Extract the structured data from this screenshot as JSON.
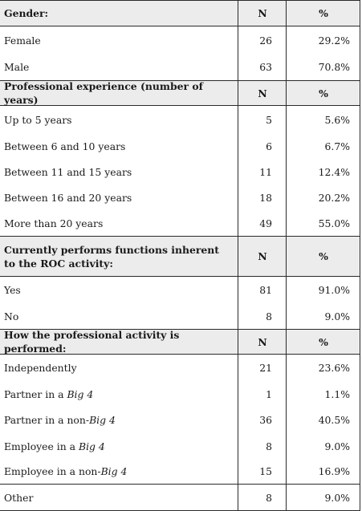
{
  "headers": {
    "n": "N",
    "pct": "%"
  },
  "sections": [
    {
      "title": "Gender:",
      "rows": [
        {
          "label": "Female",
          "n": "26",
          "pct": "29.2%"
        },
        {
          "label": "Male",
          "n": "63",
          "pct": "70.8%"
        }
      ]
    },
    {
      "title": "Professional experience (number of years)",
      "rows": [
        {
          "label": "Up to 5 years",
          "n": "5",
          "pct": "5.6%"
        },
        {
          "label": "Between 6 and 10 years",
          "n": "6",
          "pct": "6.7%"
        },
        {
          "label": "Between 11 and 15 years",
          "n": "11",
          "pct": "12.4%"
        },
        {
          "label": "Between 16 and 20 years",
          "n": "18",
          "pct": "20.2%"
        },
        {
          "label": "More than 20 years",
          "n": "49",
          "pct": "55.0%"
        }
      ]
    },
    {
      "title": "Currently performs functions inherent to the ROC activity:",
      "rows": [
        {
          "label": "Yes",
          "n": "81",
          "pct": "91.0%"
        },
        {
          "label": "No",
          "n": "8",
          "pct": "9.0%"
        }
      ]
    },
    {
      "title": "How the professional activity is performed:",
      "rows": [
        {
          "label": "Independently",
          "n": "21",
          "pct": "23.6%"
        },
        {
          "label": "Partner in a Big 4",
          "n": "1",
          "pct": "1.1%"
        },
        {
          "label": "Partner in a non-Big 4",
          "n": "36",
          "pct": "40.5%"
        },
        {
          "label": "Employee in a Big 4",
          "n": "8",
          "pct": "9.0%"
        },
        {
          "label": "Employee in a non-Big 4",
          "n": "15",
          "pct": "16.9%"
        },
        {
          "label": "Other",
          "n": "8",
          "pct": "9.0%"
        }
      ]
    }
  ]
}
